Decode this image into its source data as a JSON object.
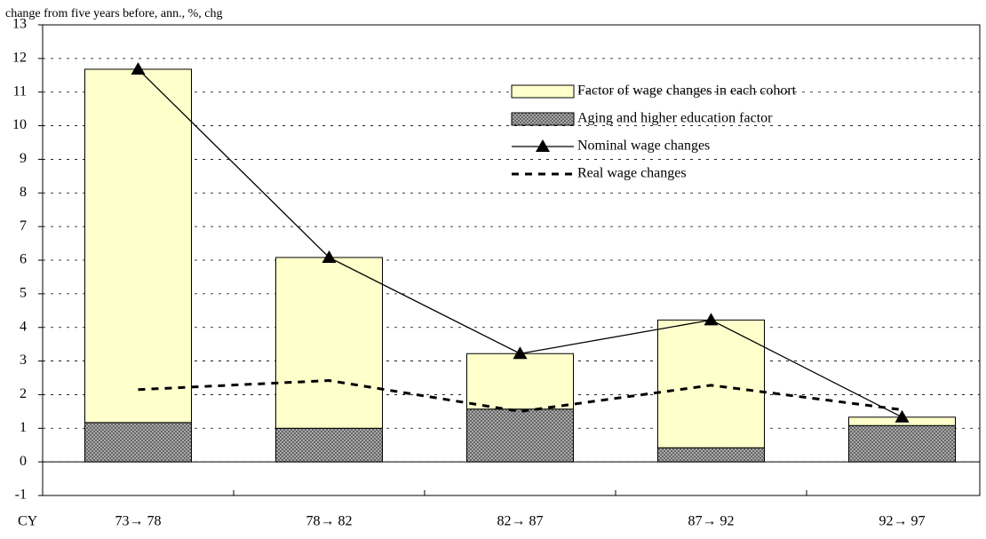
{
  "chart_data": {
    "type": "bar",
    "y_axis_label": "change from five years before, ann., %, chg",
    "x_axis_label": "CY",
    "categories": [
      "73→ 78",
      "78→ 82",
      "82→ 87",
      "87→ 92",
      "92→ 97"
    ],
    "series": [
      {
        "name": "Factor of wage changes in each cohort",
        "type": "bar",
        "stack_order": 1,
        "color": "#ffffcc",
        "values": [
          10.51,
          5.08,
          1.65,
          3.8,
          0.25
        ]
      },
      {
        "name": "Aging and higher education factor",
        "type": "bar",
        "stack_order": 0,
        "color": "#999999",
        "values": [
          1.17,
          1.0,
          1.57,
          0.42,
          1.08
        ]
      },
      {
        "name": "Nominal wage changes",
        "type": "line",
        "marker": "triangle",
        "dashed": false,
        "color": "#000000",
        "values": [
          11.68,
          6.08,
          3.22,
          4.22,
          1.33
        ]
      },
      {
        "name": "Real wage changes",
        "type": "line",
        "marker": "none",
        "dashed": true,
        "color": "#000000",
        "values": [
          2.15,
          2.42,
          1.5,
          2.28,
          1.55
        ]
      }
    ],
    "ylim": [
      -1,
      13
    ],
    "yticks": [
      -1,
      0,
      1,
      2,
      3,
      4,
      5,
      6,
      7,
      8,
      9,
      10,
      11,
      12,
      13
    ],
    "grid": true
  }
}
